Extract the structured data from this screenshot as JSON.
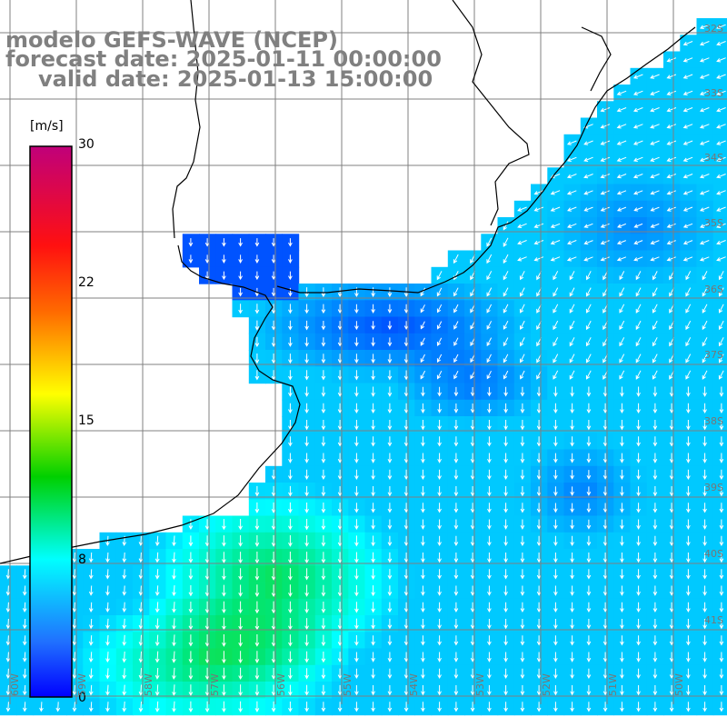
{
  "title": {
    "model": "modelo GEFS-WAVE (NCEP)",
    "forecast": "forecast date: 2025-01-11 00:00:00",
    "valid": "valid date: 2025-01-13 15:00:00"
  },
  "colorbar": {
    "units": "[m/s]",
    "ticks": [
      "30",
      "22",
      "15",
      "8",
      "0"
    ],
    "colors": [
      "#c0007a",
      "#ff0000",
      "#ff8000",
      "#ffff00",
      "#00d000",
      "#00ffff",
      "#0000ff"
    ]
  },
  "grid": {
    "lat_labels": [
      "32S",
      "33S",
      "34S",
      "35S",
      "36S",
      "37S",
      "38S",
      "39S",
      "40S",
      "41S"
    ],
    "lon_labels": [
      "60W",
      "59W",
      "58W",
      "57W",
      "56W",
      "55W",
      "54W",
      "53W",
      "52W",
      "51W",
      "50W"
    ]
  },
  "colors": {
    "land": "#ffffff",
    "gridline": "#808080",
    "coast": "#000000",
    "arrows": "#ffffff",
    "calm_blue": "#2060f0",
    "mid_cyan": "#20c8ff",
    "strong_green": "#40e060"
  }
}
